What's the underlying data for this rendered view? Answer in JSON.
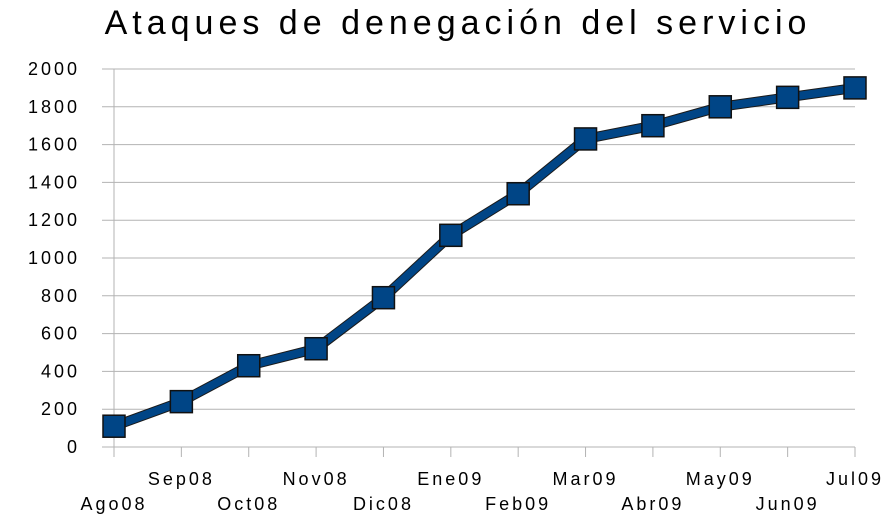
{
  "chart_data": {
    "type": "line",
    "title": "Ataques de denegación del servicio",
    "xlabel": "",
    "ylabel": "",
    "categories": [
      "Ago08",
      "Sep08",
      "Oct08",
      "Nov08",
      "Dic08",
      "Ene09",
      "Feb09",
      "Mar09",
      "Abr09",
      "May09",
      "Jun09",
      "Jul09"
    ],
    "series": [
      {
        "values": [
          110,
          240,
          430,
          520,
          790,
          1120,
          1340,
          1630,
          1700,
          1800,
          1850,
          1900
        ]
      }
    ],
    "ylim": [
      0,
      2000
    ],
    "yticks": [
      0,
      200,
      400,
      600,
      800,
      1000,
      1200,
      1400,
      1600,
      1800,
      2000
    ],
    "grid": true,
    "legend": "none",
    "colors": {
      "series": "#004586",
      "grid": "#b3b3b3"
    }
  }
}
